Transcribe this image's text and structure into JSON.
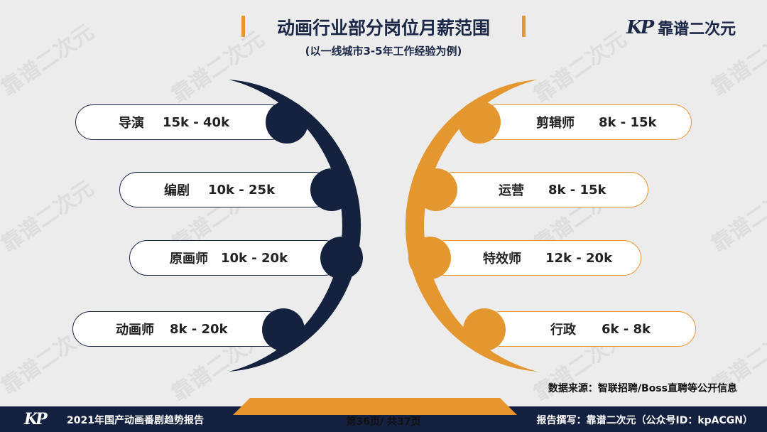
{
  "header": {
    "title": "动画行业部分岗位月薪范围",
    "subtitle": "(以一线城市3-5年工作经验为例)"
  },
  "logo": {
    "mark": "KP",
    "text": "靠谱二次元"
  },
  "watermark": "靠谱二次元",
  "left_roles": [
    {
      "role": "导演",
      "salary": "15k - 40k"
    },
    {
      "role": "编剧",
      "salary": "10k - 25k"
    },
    {
      "role": "原画师",
      "salary": "10k - 20k"
    },
    {
      "role": "动画师",
      "salary": "8k - 20k"
    }
  ],
  "right_roles": [
    {
      "role": "剪辑师",
      "salary": "8k - 15k"
    },
    {
      "role": "运营",
      "salary": "8k - 15k"
    },
    {
      "role": "特效师",
      "salary": "12k - 20k"
    },
    {
      "role": "行政",
      "salary": "6k - 8k"
    }
  ],
  "source": "数据来源：智联招聘/Boss直聘等公开信息",
  "footer": {
    "report_name": "2021年国产动画番剧趋势报告",
    "page": "第36页/ 共37页",
    "author": "报告撰写：靠谱二次元（公众号ID：kpACGN）"
  },
  "colors": {
    "navy": "#14223f",
    "orange": "#e8952f",
    "background": "#ececec"
  }
}
